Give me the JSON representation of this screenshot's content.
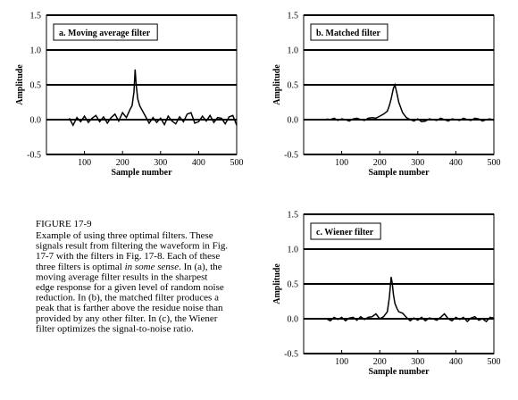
{
  "chart_data": [
    {
      "type": "line",
      "title": "a.  Moving average filter",
      "xlabel": "Sample number",
      "ylabel": "Amplitude",
      "x": [
        60,
        70,
        80,
        90,
        100,
        110,
        120,
        130,
        140,
        150,
        160,
        170,
        180,
        190,
        200,
        210,
        220,
        225,
        230,
        233,
        236,
        240,
        245,
        250,
        260,
        270,
        280,
        290,
        300,
        310,
        320,
        330,
        340,
        350,
        360,
        370,
        380,
        390,
        400,
        410,
        420,
        430,
        440,
        450,
        460,
        470,
        480,
        490,
        500
      ],
      "values": [
        0.02,
        -0.08,
        0.03,
        -0.03,
        0.05,
        -0.04,
        0.02,
        0.06,
        -0.03,
        0.04,
        -0.05,
        0.03,
        0.08,
        -0.02,
        0.1,
        0.03,
        0.15,
        0.2,
        0.4,
        0.72,
        0.5,
        0.3,
        0.2,
        0.15,
        0.05,
        -0.05,
        0.03,
        -0.04,
        0.02,
        -0.07,
        0.05,
        -0.02,
        -0.06,
        0.04,
        -0.03,
        0.08,
        0.1,
        -0.05,
        -0.03,
        0.05,
        -0.02,
        0.06,
        -0.04,
        0.03,
        0.02,
        -0.06,
        0.04,
        0.06,
        -0.08
      ],
      "color": "#000000",
      "xlim": [
        0,
        500
      ],
      "ylim": [
        -0.5,
        1.5
      ],
      "xticks": [
        100,
        200,
        300,
        400,
        500
      ],
      "yticks": [
        {
          "value": 1.5,
          "label": "1.5"
        },
        {
          "value": 1,
          "label": "1.0"
        },
        {
          "value": 0.5,
          "label": "0.5"
        },
        {
          "value": 0,
          "label": "0.0"
        },
        {
          "value": -0.5,
          "label": "-0.5"
        }
      ],
      "grid": true
    },
    {
      "type": "line",
      "title": "b.  Matched filter",
      "xlabel": "Sample number",
      "ylabel": "Amplitude",
      "x": [
        60,
        70,
        80,
        90,
        100,
        110,
        120,
        130,
        140,
        150,
        160,
        170,
        180,
        190,
        200,
        210,
        220,
        225,
        230,
        233,
        236,
        240,
        245,
        250,
        260,
        270,
        280,
        290,
        300,
        310,
        320,
        330,
        340,
        350,
        360,
        370,
        380,
        390,
        400,
        410,
        420,
        430,
        440,
        450,
        460,
        470,
        480,
        490,
        500
      ],
      "values": [
        0.01,
        0,
        0.02,
        -0.01,
        0.01,
        0,
        -0.02,
        0.01,
        0.02,
        0,
        -0.01,
        0.02,
        0.03,
        0.02,
        0.05,
        0.08,
        0.12,
        0.2,
        0.3,
        0.38,
        0.45,
        0.5,
        0.38,
        0.25,
        0.1,
        0.03,
        0,
        -0.02,
        0.01,
        -0.03,
        -0.02,
        0.01,
        0,
        -0.01,
        0.02,
        0,
        -0.02,
        0.01,
        0,
        -0.01,
        0.02,
        0,
        -0.01,
        0.02,
        0.01,
        -0.02,
        0,
        0.01,
        -0.01
      ],
      "color": "#000000",
      "xlim": [
        0,
        500
      ],
      "ylim": [
        -0.5,
        1.5
      ],
      "xticks": [
        100,
        200,
        300,
        400,
        500
      ],
      "yticks": [
        {
          "value": 1.5,
          "label": "1.5"
        },
        {
          "value": 1,
          "label": "1.0"
        },
        {
          "value": 0.5,
          "label": "0.5"
        },
        {
          "value": 0,
          "label": "0.0"
        },
        {
          "value": -0.5,
          "label": "-0.5"
        }
      ],
      "grid": true
    },
    {
      "type": "line",
      "title": "c.  Wiener filter",
      "xlabel": "Sample number",
      "ylabel": "Amplitude",
      "x": [
        60,
        70,
        80,
        90,
        100,
        110,
        120,
        130,
        140,
        150,
        160,
        170,
        180,
        190,
        200,
        210,
        220,
        225,
        230,
        233,
        236,
        240,
        245,
        250,
        260,
        270,
        280,
        290,
        300,
        310,
        320,
        330,
        340,
        350,
        360,
        370,
        380,
        390,
        400,
        410,
        420,
        430,
        440,
        450,
        460,
        470,
        480,
        490,
        500
      ],
      "values": [
        0,
        -0.03,
        0.02,
        -0.01,
        0.02,
        -0.03,
        0.01,
        0.02,
        -0.02,
        0.03,
        -0.01,
        0.02,
        0.03,
        0.07,
        0,
        0.03,
        0.1,
        0.3,
        0.6,
        0.5,
        0.35,
        0.22,
        0.15,
        0.1,
        0.08,
        0.02,
        -0.03,
        0.01,
        -0.02,
        0.02,
        -0.03,
        0.01,
        0,
        -0.02,
        0.02,
        0.07,
        0,
        -0.03,
        0.02,
        -0.01,
        0.02,
        -0.04,
        0.01,
        0.03,
        -0.02,
        0,
        -0.04,
        0.02,
        0.01
      ],
      "color": "#000000",
      "xlim": [
        0,
        500
      ],
      "ylim": [
        -0.5,
        1.5
      ],
      "xticks": [
        100,
        200,
        300,
        400,
        500
      ],
      "yticks": [
        {
          "value": 1.5,
          "label": "1.5"
        },
        {
          "value": 1,
          "label": "1.0"
        },
        {
          "value": 0.5,
          "label": "0.5"
        },
        {
          "value": 0,
          "label": "0.0"
        },
        {
          "value": -0.5,
          "label": "-0.5"
        }
      ],
      "grid": true
    }
  ],
  "caption": {
    "title": "FIGURE 17-9",
    "lines": [
      "Example of using three optimal filters.  These",
      "signals result from filtering the waveform in Fig.",
      "17-7 with the filters in  Fig. 17-8. Each of these",
      {
        "before": "three filters is optimal ",
        "italic": "in some sense",
        "after": ". In (a), the"
      },
      "moving average filter results in the sharpest",
      "edge response for a given level of random noise",
      "reduction.  In (b), the matched filter produces a",
      "peak that is farther above the residue noise than",
      "provided by any other filter.  In (c), the Wiener",
      "filter optimizes the signal-to-noise ratio."
    ]
  }
}
